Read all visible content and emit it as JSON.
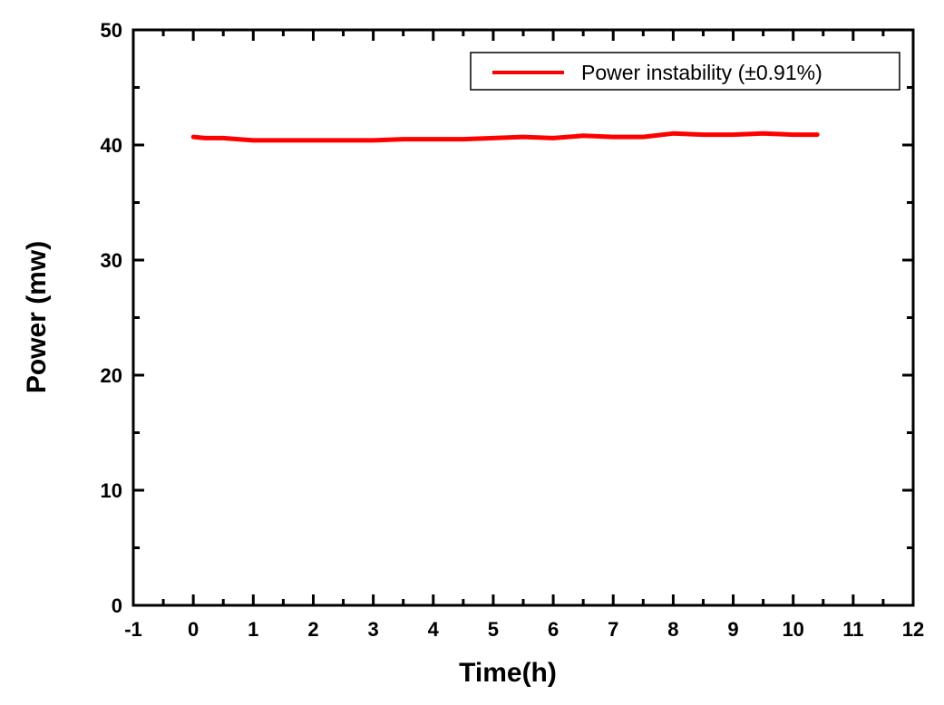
{
  "chart_data": {
    "type": "line",
    "title": "",
    "xlabel": "Time(h)",
    "ylabel": "Power (mw)",
    "xlim": [
      -1,
      12
    ],
    "ylim": [
      0,
      50
    ],
    "x_ticks": [
      -1,
      0,
      1,
      2,
      3,
      4,
      5,
      6,
      7,
      8,
      9,
      10,
      11,
      12
    ],
    "y_ticks": [
      0,
      10,
      20,
      30,
      40,
      50
    ],
    "grid": false,
    "legend_position": "upper right",
    "series": [
      {
        "name": "Power instability (±0.91%)",
        "color": "#ff0000",
        "x": [
          0,
          0.2,
          0.5,
          1,
          1.5,
          2,
          2.5,
          3,
          3.5,
          4,
          4.5,
          5,
          5.5,
          6,
          6.5,
          7,
          7.5,
          8,
          8.5,
          9,
          9.5,
          10,
          10.4
        ],
        "values": [
          40.7,
          40.6,
          40.6,
          40.4,
          40.4,
          40.4,
          40.4,
          40.4,
          40.5,
          40.5,
          40.5,
          40.6,
          40.7,
          40.6,
          40.8,
          40.7,
          40.7,
          41.0,
          40.9,
          40.9,
          41.0,
          40.9,
          40.9
        ]
      }
    ]
  },
  "legend": {
    "label": "Power instability (±0.91%)"
  },
  "axes": {
    "xlabel": "Time(h)",
    "ylabel": "Power (mw)"
  }
}
